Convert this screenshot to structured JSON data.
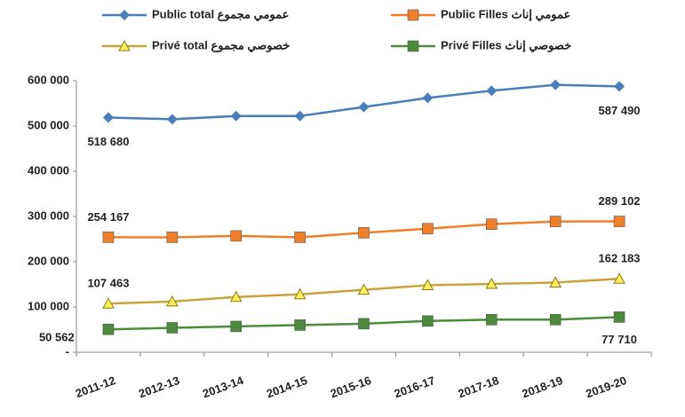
{
  "chart_data": {
    "type": "line",
    "categories": [
      "2011-12",
      "2012-13",
      "2013-14",
      "2014-15",
      "2015-16",
      "2016-17",
      "2017-18",
      "2018-19",
      "2019-20"
    ],
    "series": [
      {
        "name": "Public total عمومي مجموع",
        "color": "#4a7ebb",
        "marker": "diamond",
        "values": [
          518680,
          515000,
          522000,
          522000,
          542000,
          562000,
          578000,
          591000,
          587490
        ],
        "value_labels": [
          "518 680",
          null,
          null,
          null,
          null,
          null,
          null,
          null,
          "587 490"
        ]
      },
      {
        "name": "Public Filles عمومي إناث",
        "color": "#f07f2c",
        "marker": "square",
        "values": [
          254167,
          254000,
          257000,
          254000,
          264000,
          273000,
          283000,
          289000,
          289102
        ],
        "value_labels": [
          "254 167",
          null,
          null,
          null,
          null,
          null,
          null,
          null,
          "289 102"
        ]
      },
      {
        "name": "Privé total خصوصي مجموع",
        "color": "#c9a33a",
        "marker": "triangle",
        "values": [
          107463,
          112000,
          122000,
          128000,
          138000,
          148000,
          151000,
          154000,
          162183
        ],
        "value_labels": [
          "107 463",
          null,
          null,
          null,
          null,
          null,
          null,
          null,
          "162 183"
        ]
      },
      {
        "name": "Privé Filles خصوصي إناث",
        "color": "#4e8a3c",
        "marker": "square",
        "values": [
          50562,
          54000,
          57000,
          60000,
          63000,
          69000,
          72000,
          72000,
          77710
        ],
        "value_labels": [
          "50 562",
          null,
          null,
          null,
          null,
          null,
          null,
          null,
          "77 710"
        ]
      }
    ],
    "ylim": [
      0,
      600000
    ],
    "yticks": [
      {
        "value": 0,
        "label": "-"
      },
      {
        "value": 100000,
        "label": "100 000"
      },
      {
        "value": 200000,
        "label": "200 000"
      },
      {
        "value": 300000,
        "label": "300 000"
      },
      {
        "value": 400000,
        "label": "400 000"
      },
      {
        "value": 500000,
        "label": "500 000"
      },
      {
        "value": 600000,
        "label": "600 000"
      }
    ],
    "grid": false,
    "legend": "top"
  }
}
